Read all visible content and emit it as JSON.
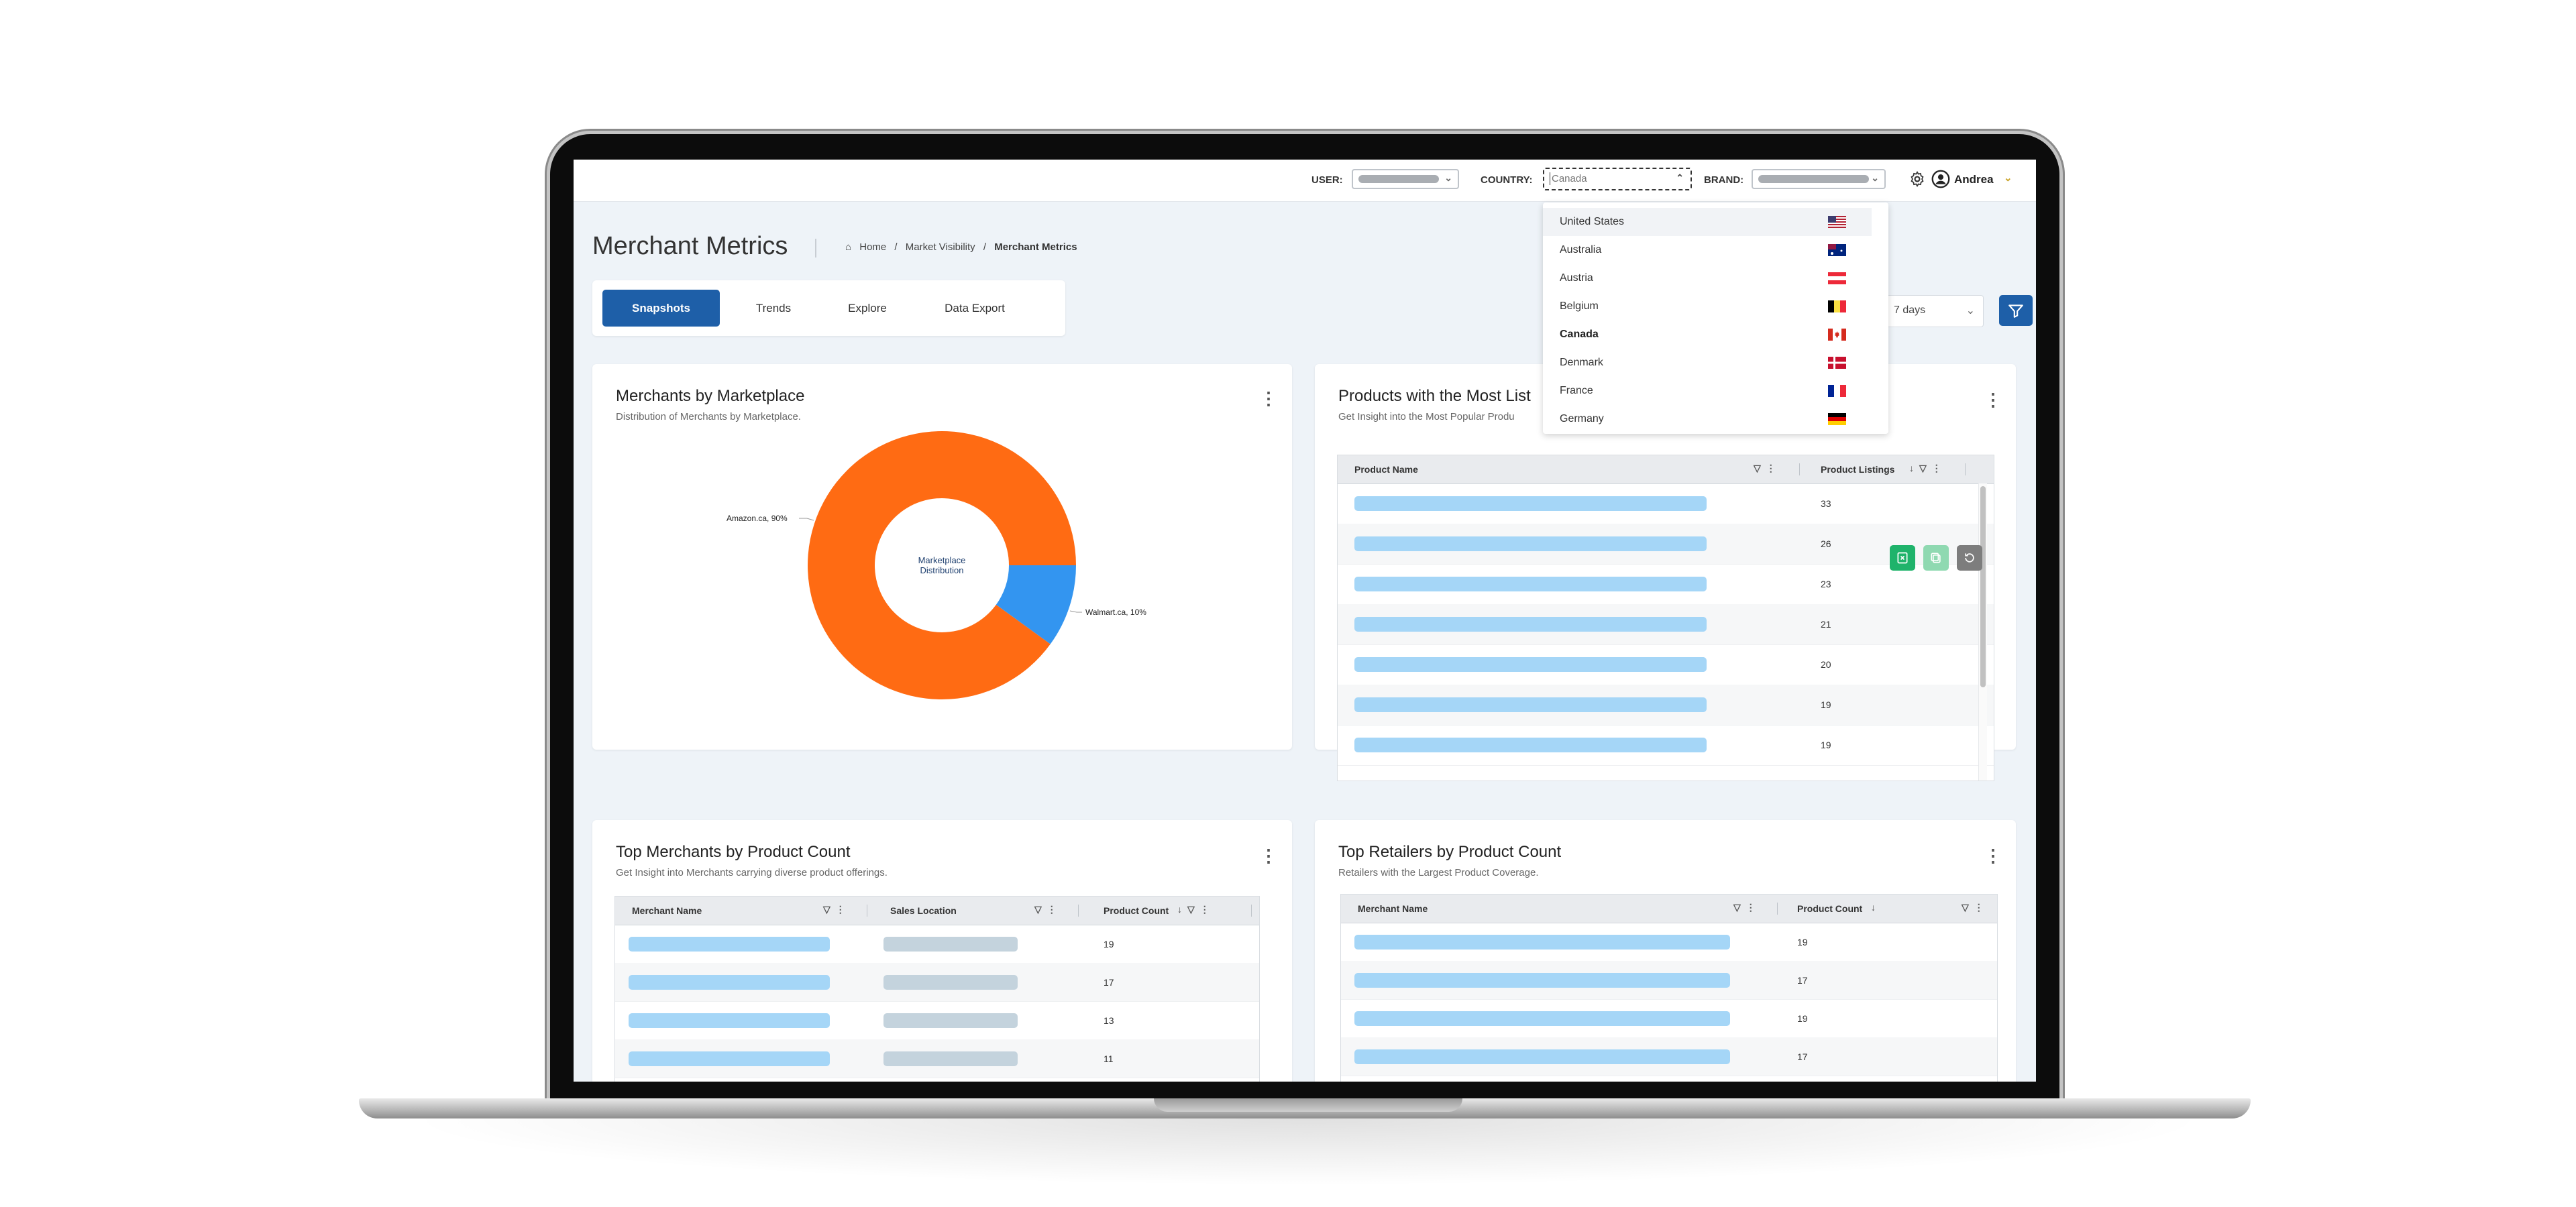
{
  "topbar": {
    "user_label": "USER:",
    "country_label": "COUNTRY:",
    "country_placeholder": "Canada",
    "brand_label": "BRAND:",
    "username": "Andrea"
  },
  "page": {
    "title": "Merchant Metrics",
    "breadcrumb": {
      "home": "Home",
      "sep1": "/",
      "section": "Market Visibility",
      "sep2": "/",
      "current": "Merchant Metrics"
    }
  },
  "tabs": [
    {
      "label": "Snapshots",
      "active": true
    },
    {
      "label": "Trends",
      "active": false
    },
    {
      "label": "Explore",
      "active": false
    },
    {
      "label": "Data Export",
      "active": false
    }
  ],
  "period": {
    "label": "7 days"
  },
  "country_dropdown": {
    "options": [
      {
        "name": "United States",
        "flag": "us-flag-icon"
      },
      {
        "name": "Australia",
        "flag": "au-flag-icon"
      },
      {
        "name": "Austria",
        "flag": "at-flag-icon"
      },
      {
        "name": "Belgium",
        "flag": "be-flag-icon"
      },
      {
        "name": "Canada",
        "flag": "ca-flag-icon",
        "selected": true
      },
      {
        "name": "Denmark",
        "flag": "dk-flag-icon"
      },
      {
        "name": "France",
        "flag": "fr-flag-icon"
      },
      {
        "name": "Germany",
        "flag": "de-flag-icon"
      }
    ]
  },
  "marketplace_card": {
    "title": "Merchants by Marketplace",
    "subtitle": "Distribution of Merchants by Marketplace.",
    "center_label_line1": "Marketplace",
    "center_label_line2": "Distribution",
    "slice_labels": [
      "Amazon.ca, 90%",
      "Walmart.ca, 10%"
    ]
  },
  "chart_data": {
    "type": "pie",
    "categories": [
      "Amazon.ca",
      "Walmart.ca"
    ],
    "values": [
      90,
      10
    ],
    "colors": [
      "#ff6b13",
      "#3395f0"
    ],
    "title": "Merchants by Marketplace"
  },
  "products_card": {
    "title": "Products with the Most List",
    "subtitle": "Get Insight into the Most Popular Produ",
    "columns": [
      "Product Name",
      "Product Listings"
    ],
    "rows": [
      33,
      26,
      23,
      21,
      20,
      19,
      19
    ]
  },
  "merchants_card": {
    "title": "Top Merchants by Product Count",
    "subtitle": "Get Insight into Merchants carrying diverse product offerings.",
    "columns": [
      "Merchant Name",
      "Sales Location",
      "Product Count"
    ],
    "rows": [
      19,
      17,
      13,
      11
    ]
  },
  "retailers_card": {
    "title": "Top Retailers by Product Count",
    "subtitle": "Retailers with the Largest Product Coverage.",
    "columns": [
      "Merchant Name",
      "Product Count"
    ],
    "rows": [
      19,
      17,
      19,
      17
    ]
  },
  "colors": {
    "primary": "#1e5fa8",
    "amazon": "#ff6b13",
    "walmart": "#3395f0",
    "redacted_bar": "#a5d6f7",
    "export_green": "#1fb36b"
  }
}
